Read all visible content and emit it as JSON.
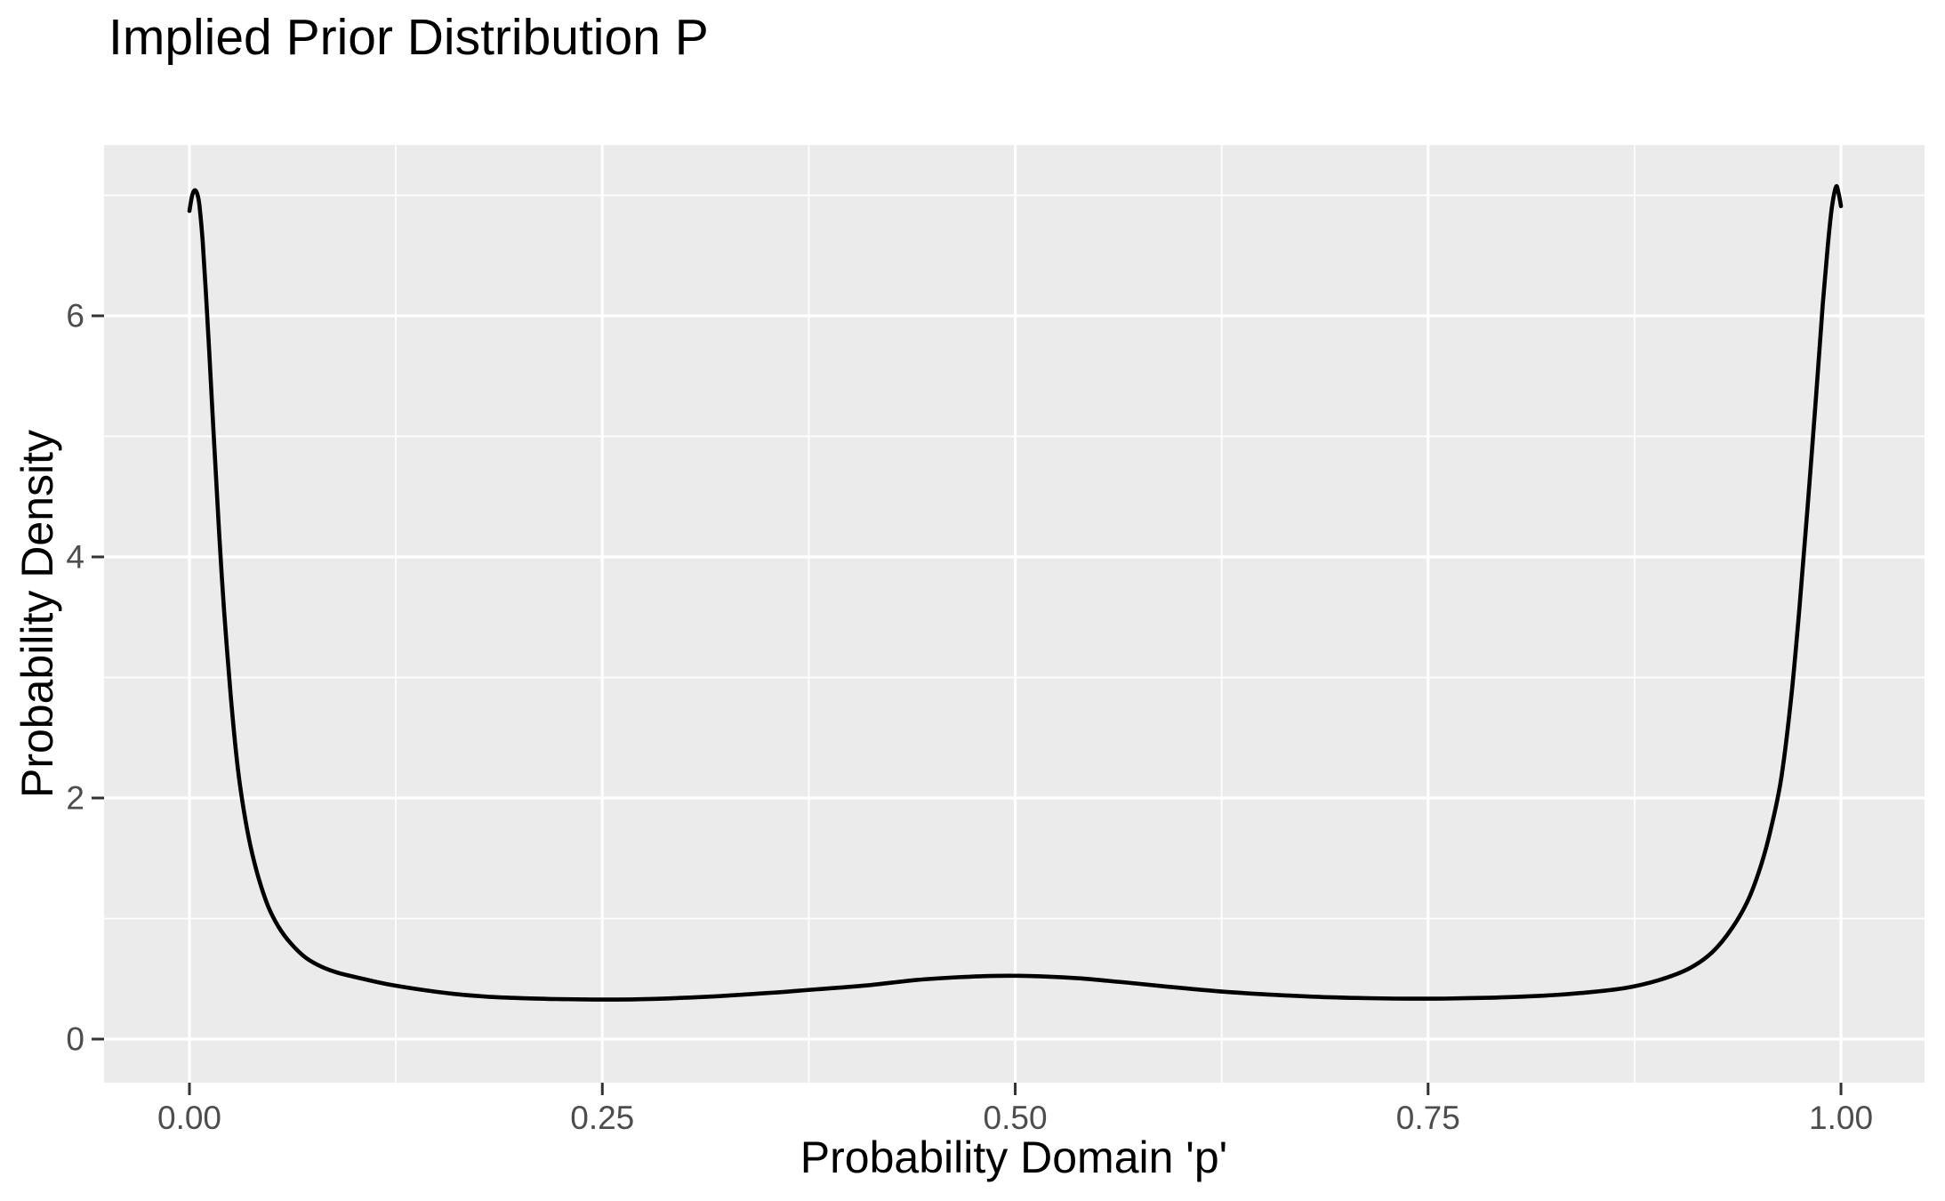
{
  "title": "Implied Prior Distribution P",
  "style": {
    "background": "#FFFFFF",
    "panel_background": "#EBEBEB",
    "grid_color": "#FFFFFF",
    "tick_mark_color": "#333333",
    "tick_label_color": "#4D4D4D",
    "title_color": "#000000",
    "axis_title_color": "#000000",
    "line_color": "#000000"
  },
  "chart_data": {
    "type": "line",
    "title": "Implied Prior Distribution P",
    "xlabel": "Probability Domain 'p'",
    "ylabel": "Probability Density",
    "legend": "none",
    "grid": "white major and minor gridlines on grey panel",
    "x_ticks": {
      "values": [
        0,
        0.25,
        0.5,
        0.75,
        1.0
      ],
      "labels": [
        "0.00",
        "0.25",
        "0.50",
        "0.75",
        "1.00"
      ]
    },
    "x_minor": [
      0.125,
      0.375,
      0.625,
      0.875
    ],
    "y_ticks": {
      "values": [
        0,
        2,
        4,
        6
      ],
      "labels": [
        "0",
        "2",
        "4",
        "6"
      ]
    },
    "y_minor": [
      1,
      3,
      5,
      7
    ],
    "xlim": [
      -0.0517,
      1.0506
    ],
    "ylim": [
      -0.3616,
      7.417
    ],
    "x_data_range": [
      0,
      1
    ],
    "y_data_range": [
      0,
      7.07
    ],
    "series": [
      {
        "name": "implied-prior-density",
        "color": "#000000",
        "points": [
          [
            0.0,
            6.87
          ],
          [
            0.0015,
            6.99
          ],
          [
            0.003,
            7.04
          ],
          [
            0.0045,
            7.02
          ],
          [
            0.006,
            6.92
          ],
          [
            0.008,
            6.62
          ],
          [
            0.01,
            6.18
          ],
          [
            0.012,
            5.7
          ],
          [
            0.015,
            4.93
          ],
          [
            0.018,
            4.2
          ],
          [
            0.021,
            3.55
          ],
          [
            0.025,
            2.85
          ],
          [
            0.029,
            2.28
          ],
          [
            0.033,
            1.89
          ],
          [
            0.037,
            1.6
          ],
          [
            0.042,
            1.33
          ],
          [
            0.048,
            1.09
          ],
          [
            0.054,
            0.93
          ],
          [
            0.061,
            0.8
          ],
          [
            0.07,
            0.68
          ],
          [
            0.08,
            0.6
          ],
          [
            0.09,
            0.55
          ],
          [
            0.105,
            0.5
          ],
          [
            0.12,
            0.455
          ],
          [
            0.14,
            0.41
          ],
          [
            0.16,
            0.375
          ],
          [
            0.18,
            0.352
          ],
          [
            0.2,
            0.34
          ],
          [
            0.222,
            0.332
          ],
          [
            0.245,
            0.328
          ],
          [
            0.27,
            0.33
          ],
          [
            0.295,
            0.34
          ],
          [
            0.32,
            0.356
          ],
          [
            0.35,
            0.382
          ],
          [
            0.38,
            0.413
          ],
          [
            0.41,
            0.445
          ],
          [
            0.44,
            0.49
          ],
          [
            0.465,
            0.513
          ],
          [
            0.49,
            0.525
          ],
          [
            0.515,
            0.521
          ],
          [
            0.54,
            0.503
          ],
          [
            0.565,
            0.472
          ],
          [
            0.59,
            0.438
          ],
          [
            0.62,
            0.4
          ],
          [
            0.65,
            0.372
          ],
          [
            0.68,
            0.352
          ],
          [
            0.705,
            0.342
          ],
          [
            0.73,
            0.336
          ],
          [
            0.76,
            0.336
          ],
          [
            0.79,
            0.344
          ],
          [
            0.82,
            0.36
          ],
          [
            0.845,
            0.385
          ],
          [
            0.87,
            0.425
          ],
          [
            0.89,
            0.49
          ],
          [
            0.908,
            0.585
          ],
          [
            0.922,
            0.72
          ],
          [
            0.934,
            0.92
          ],
          [
            0.944,
            1.16
          ],
          [
            0.952,
            1.46
          ],
          [
            0.958,
            1.77
          ],
          [
            0.964,
            2.18
          ],
          [
            0.97,
            2.85
          ],
          [
            0.975,
            3.6
          ],
          [
            0.98,
            4.45
          ],
          [
            0.985,
            5.35
          ],
          [
            0.989,
            6.1
          ],
          [
            0.992,
            6.58
          ],
          [
            0.9945,
            6.9
          ],
          [
            0.997,
            7.07
          ],
          [
            0.9985,
            7.02
          ],
          [
            1.0,
            6.91
          ]
        ]
      }
    ]
  }
}
